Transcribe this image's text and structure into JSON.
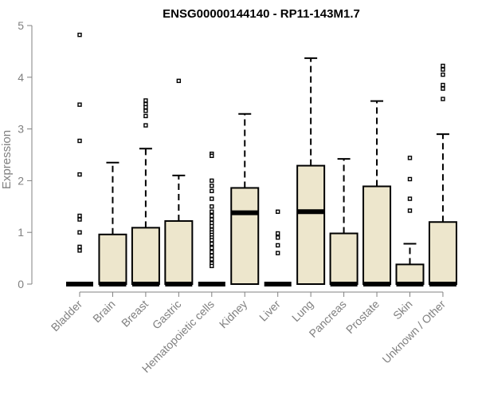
{
  "chart_data": {
    "type": "boxplot",
    "title": "ENSG00000144140 - RP11-143M1.7",
    "xlabel": "",
    "ylabel": "Expression",
    "ylim": [
      0,
      5
    ],
    "yticks": [
      0,
      1,
      2,
      3,
      4,
      5
    ],
    "grid": false,
    "colors": {
      "box_fill": "#ede6cc",
      "stroke": "#000000",
      "axis": "#808080"
    },
    "boxes": [
      {
        "category": "Bladder",
        "min": 0,
        "q1": 0,
        "median": 0,
        "q3": 0,
        "max": 0,
        "outliers": [
          4.82,
          3.47,
          2.77,
          2.12,
          1.32,
          1.25,
          1.0,
          0.72,
          0.65
        ]
      },
      {
        "category": "Brain",
        "min": 0,
        "q1": 0,
        "median": 0,
        "q3": 0.96,
        "max": 2.35,
        "outliers": []
      },
      {
        "category": "Breast",
        "min": 0,
        "q1": 0,
        "median": 0,
        "q3": 1.09,
        "max": 2.62,
        "outliers": [
          3.55,
          3.48,
          3.42,
          3.35,
          3.25,
          3.07
        ]
      },
      {
        "category": "Gastric",
        "min": 0,
        "q1": 0,
        "median": 0,
        "q3": 1.22,
        "max": 2.1,
        "outliers": [
          3.93
        ]
      },
      {
        "category": "Hematopoietic cells",
        "min": 0,
        "q1": 0,
        "median": 0,
        "q3": 0,
        "max": 0,
        "outliers": [
          2.52,
          2.48,
          2.0,
          1.9,
          1.8,
          1.65,
          1.5,
          1.4,
          1.32,
          1.25,
          1.18,
          1.12,
          1.05,
          1.0,
          0.95,
          0.9,
          0.85,
          0.78,
          0.7,
          0.62,
          0.55,
          0.48,
          0.4,
          0.35
        ]
      },
      {
        "category": "Kidney",
        "min": 0,
        "q1": 0,
        "median": 1.38,
        "q3": 1.86,
        "max": 3.29,
        "outliers": []
      },
      {
        "category": "Liver",
        "min": 0,
        "q1": 0,
        "median": 0,
        "q3": 0,
        "max": 0,
        "outliers": [
          1.4,
          0.98,
          0.9,
          0.75,
          0.6
        ]
      },
      {
        "category": "Lung",
        "min": 0,
        "q1": 0,
        "median": 1.4,
        "q3": 2.29,
        "max": 4.37,
        "outliers": []
      },
      {
        "category": "Pancreas",
        "min": 0,
        "q1": 0,
        "median": 0,
        "q3": 0.98,
        "max": 2.42,
        "outliers": []
      },
      {
        "category": "Prostate",
        "min": 0,
        "q1": 0,
        "median": 0,
        "q3": 1.89,
        "max": 3.54,
        "outliers": []
      },
      {
        "category": "Skin",
        "min": 0,
        "q1": 0,
        "median": 0,
        "q3": 0.38,
        "max": 0.78,
        "outliers": [
          2.44,
          2.03,
          1.65,
          1.42
        ]
      },
      {
        "category": "Unknown / Other",
        "min": 0,
        "q1": 0,
        "median": 0,
        "q3": 1.2,
        "max": 2.9,
        "outliers": [
          4.22,
          4.15,
          4.05,
          3.85,
          3.78,
          3.58
        ]
      }
    ]
  }
}
